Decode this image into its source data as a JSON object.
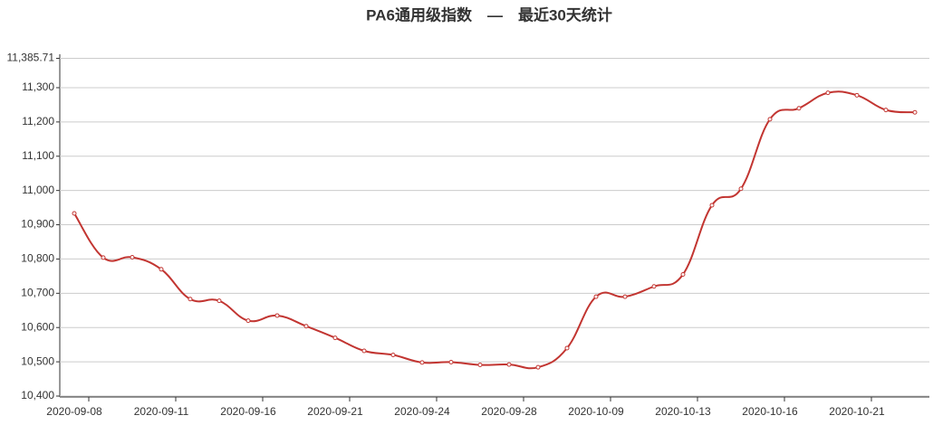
{
  "chart_data": {
    "type": "line",
    "title": "PA6通用级指数　—　最近30天统计",
    "categories": [
      "2020-09-08",
      null,
      null,
      "2020-09-11",
      null,
      null,
      "2020-09-16",
      null,
      null,
      "2020-09-21",
      null,
      null,
      "2020-09-24",
      null,
      null,
      "2020-09-28",
      null,
      null,
      "2020-10-09",
      null,
      null,
      "2020-10-13",
      null,
      null,
      "2020-10-16",
      null,
      null,
      "2020-10-21",
      null,
      null
    ],
    "series": [
      {
        "name": "PA6通用级指数",
        "color": "#c23531",
        "values": [
          10933,
          10804,
          10805,
          10770,
          10683,
          10678,
          10620,
          10635,
          10604,
          10570,
          10532,
          10520,
          10498,
          10499,
          10491,
          10492,
          10484,
          10540,
          10690,
          10690,
          10720,
          10755,
          10957,
          11005,
          11208,
          11240,
          11285,
          11278,
          11235,
          11228
        ]
      }
    ],
    "ylim": [
      10400,
      11385.71
    ],
    "yticks": [
      {
        "value": 10400,
        "label": "10,400"
      },
      {
        "value": 10500,
        "label": "10,500"
      },
      {
        "value": 10600,
        "label": "10,600"
      },
      {
        "value": 10700,
        "label": "10,700"
      },
      {
        "value": 10800,
        "label": "10,800"
      },
      {
        "value": 10900,
        "label": "10,900"
      },
      {
        "value": 11000,
        "label": "11,000"
      },
      {
        "value": 11100,
        "label": "11,100"
      },
      {
        "value": 11200,
        "label": "11,200"
      },
      {
        "value": 11300,
        "label": "11,300"
      },
      {
        "value": 11385.71,
        "label": "11,385.71"
      }
    ],
    "grid": true
  }
}
